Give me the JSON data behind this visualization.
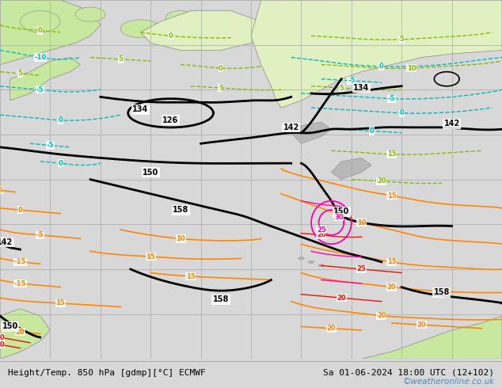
{
  "title_left": "Height/Temp. 850 hPa [gdmp][°C] ECMWF",
  "title_right": "Sa 01-06-2024 18:00 UTC (12+102)",
  "watermark": "©weatheronline.co.uk",
  "bg_color": "#d8d8d8",
  "ocean_color": "#d0d0d0",
  "land_green_color": "#c8e8a0",
  "land_light_green": "#e0f0c0",
  "land_gray_color": "#b8b8b8",
  "grid_color": "#aaaaaa",
  "fig_width": 6.34,
  "fig_height": 4.9,
  "dpi": 100,
  "bottom_bar_color": "#ffffff",
  "title_fontsize": 8.0,
  "watermark_color": "#4488cc",
  "watermark_fontsize": 7.5,
  "black_lw": 2.0,
  "temp_lw": 1.2,
  "cyan_color": "#00BBBB",
  "orange_color": "#FF8800",
  "green_temp_color": "#88BB00",
  "magenta_color": "#FF00AA",
  "red_color": "#EE1100",
  "olive_color": "#aacc00"
}
